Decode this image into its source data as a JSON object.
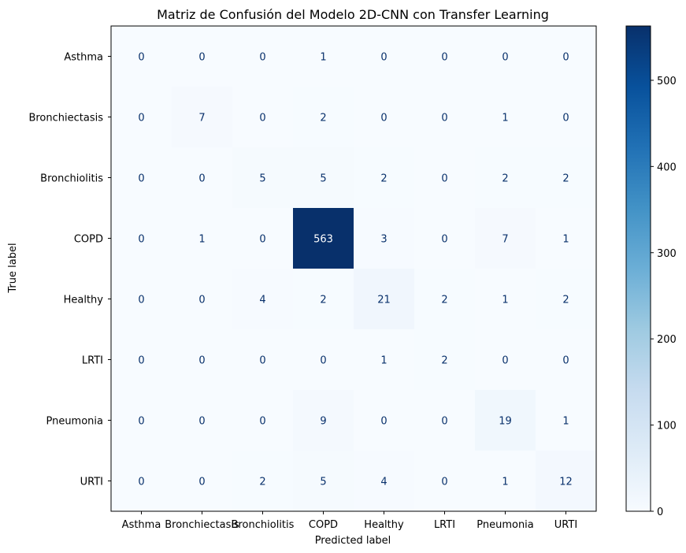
{
  "chart_data": {
    "type": "heatmap",
    "title": "Matriz de Confusión del Modelo 2D-CNN con Transfer Learning",
    "xlabel": "Predicted label",
    "ylabel": "True label",
    "x_categories": [
      "Asthma",
      "Bronchiectasis",
      "Bronchiolitis",
      "COPD",
      "Healthy",
      "LRTI",
      "Pneumonia",
      "URTI"
    ],
    "y_categories": [
      "Asthma",
      "Bronchiectasis",
      "Bronchiolitis",
      "COPD",
      "Healthy",
      "LRTI",
      "Pneumonia",
      "URTI"
    ],
    "values": [
      [
        0,
        0,
        0,
        1,
        0,
        0,
        0,
        0
      ],
      [
        0,
        7,
        0,
        2,
        0,
        0,
        1,
        0
      ],
      [
        0,
        0,
        5,
        5,
        2,
        0,
        2,
        2
      ],
      [
        0,
        1,
        0,
        563,
        3,
        0,
        7,
        1
      ],
      [
        0,
        0,
        4,
        2,
        21,
        2,
        1,
        2
      ],
      [
        0,
        0,
        0,
        0,
        1,
        2,
        0,
        0
      ],
      [
        0,
        0,
        0,
        9,
        0,
        0,
        19,
        1
      ],
      [
        0,
        0,
        2,
        5,
        4,
        0,
        1,
        12
      ]
    ],
    "colormap": "Blues",
    "colorbar": {
      "range": [
        0,
        563
      ],
      "ticks": [
        0,
        100,
        200,
        300,
        400,
        500
      ]
    },
    "colors": {
      "low": "#f7fbff",
      "high": "#08306b",
      "text_dark": "#08306b",
      "text_light": "#ffffff"
    }
  }
}
